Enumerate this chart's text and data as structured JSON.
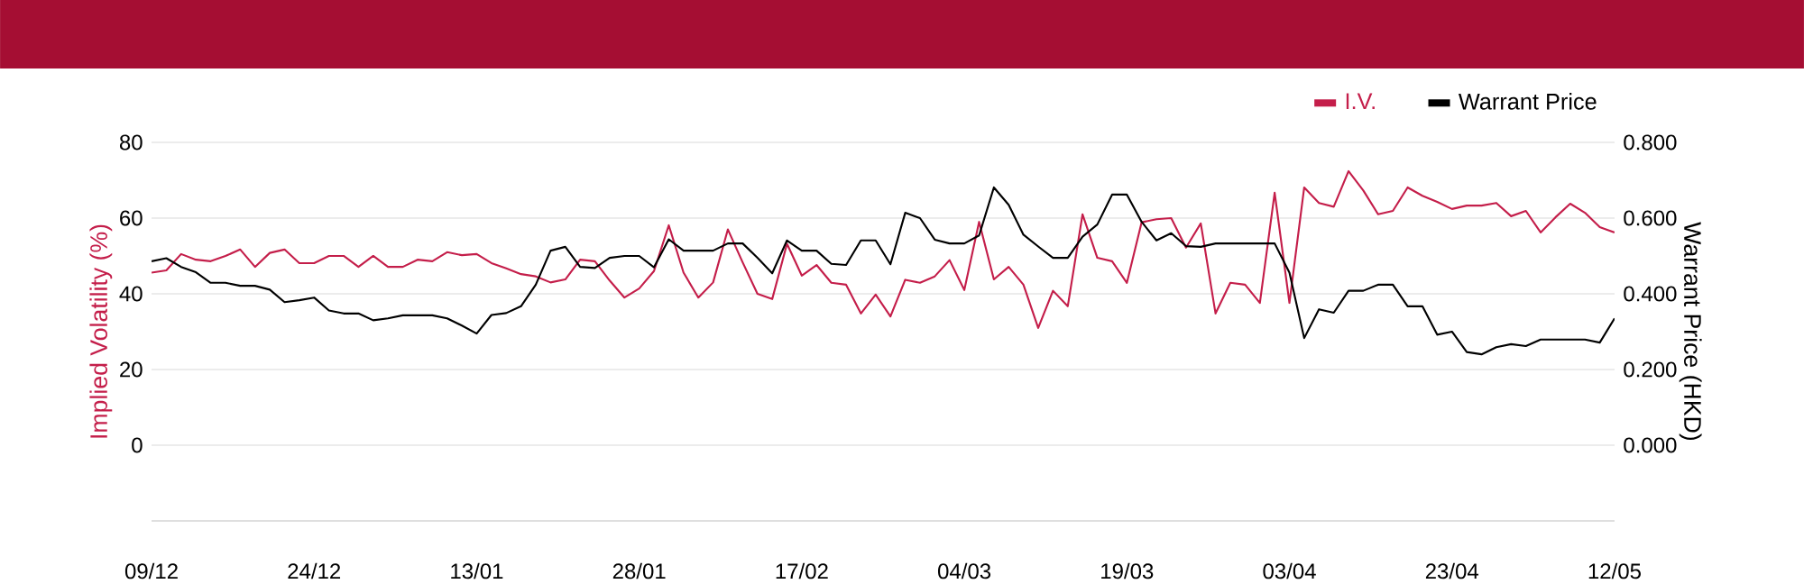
{
  "chart_data": {
    "type": "line",
    "categories": [
      "09/12",
      null,
      null,
      null,
      null,
      null,
      null,
      null,
      null,
      null,
      null,
      "24/12",
      null,
      null,
      null,
      null,
      null,
      null,
      null,
      null,
      null,
      null,
      "13/01",
      null,
      null,
      null,
      null,
      null,
      null,
      null,
      null,
      null,
      null,
      "28/01",
      null,
      null,
      null,
      null,
      null,
      null,
      null,
      null,
      null,
      null,
      "17/02",
      null,
      null,
      null,
      null,
      null,
      null,
      null,
      null,
      null,
      null,
      "04/03",
      null,
      null,
      null,
      null,
      null,
      null,
      null,
      null,
      null,
      null,
      "19/03",
      null,
      null,
      null,
      null,
      null,
      null,
      null,
      null,
      null,
      null,
      "03/04",
      null,
      null,
      null,
      null,
      null,
      null,
      null,
      null,
      null,
      null,
      "23/04",
      null,
      null,
      null,
      null,
      null,
      null,
      null,
      null,
      null,
      null,
      "12/05"
    ],
    "series": [
      {
        "name": "I.V.",
        "color": "#c41e4a",
        "values": [
          45.6,
          46.2,
          50.5,
          49,
          48.6,
          50,
          51.7,
          47.1,
          50.8,
          51.7,
          48.1,
          48.1,
          50,
          50,
          47.1,
          50,
          47.1,
          47.1,
          49,
          48.6,
          51,
          50.2,
          50.5,
          48.1,
          46.7,
          45.2,
          44.6,
          43,
          43.8,
          49,
          48.6,
          43.5,
          39,
          41.4,
          46,
          58.1,
          45.6,
          39,
          43,
          57,
          48.3,
          40,
          38.6,
          53.2,
          44.8,
          47.6,
          42.9,
          42.4,
          34.8,
          39.8,
          34,
          43.7,
          42.9,
          44.6,
          48.9,
          41,
          59,
          43.8,
          47.1,
          42.4,
          31,
          40.8,
          36.7,
          61,
          49.5,
          48.6,
          42.9,
          58.9,
          59.7,
          60,
          52.2,
          58.6,
          34.8,
          42.9,
          42.4,
          37.6,
          66.7,
          37.6,
          68.1,
          64,
          63,
          72.4,
          67.3,
          61,
          61.9,
          68.1,
          65.9,
          64.3,
          62.4,
          63.3,
          63.3,
          64,
          60.5,
          61.9,
          56.2,
          60.2,
          63.8,
          61.4,
          57.6,
          56.2
        ]
      },
      {
        "name": "Warrant Price",
        "color": "#000000",
        "axis": "y2",
        "values": [
          0.486,
          0.494,
          0.471,
          0.457,
          0.429,
          0.429,
          0.421,
          0.421,
          0.411,
          0.378,
          0.383,
          0.39,
          0.356,
          0.348,
          0.348,
          0.33,
          0.335,
          0.343,
          0.343,
          0.343,
          0.335,
          0.316,
          0.295,
          0.344,
          0.349,
          0.367,
          0.424,
          0.514,
          0.524,
          0.471,
          0.468,
          0.495,
          0.5,
          0.5,
          0.47,
          0.544,
          0.514,
          0.514,
          0.514,
          0.533,
          0.533,
          0.495,
          0.454,
          0.541,
          0.514,
          0.514,
          0.479,
          0.476,
          0.541,
          0.541,
          0.478,
          0.614,
          0.6,
          0.543,
          0.533,
          0.533,
          0.554,
          0.681,
          0.635,
          0.556,
          0.525,
          0.495,
          0.495,
          0.551,
          0.583,
          0.662,
          0.662,
          0.59,
          0.541,
          0.56,
          0.526,
          0.524,
          0.533,
          0.533,
          0.533,
          0.533,
          0.533,
          0.456,
          0.283,
          0.359,
          0.35,
          0.408,
          0.408,
          0.424,
          0.424,
          0.367,
          0.367,
          0.292,
          0.3,
          0.246,
          0.24,
          0.259,
          0.267,
          0.262,
          0.279,
          0.279,
          0.279,
          0.279,
          0.271,
          0.335
        ]
      }
    ],
    "ylabel": "Implied Volatility (%)",
    "y2label": "Warrant Price (HKD)",
    "ylim": [
      -20,
      80
    ],
    "yticks": [
      0,
      20,
      40,
      60,
      80
    ],
    "y2lim": [
      -0.2,
      0.8
    ],
    "y2ticks": [
      {
        "value": 0,
        "label": "0.000"
      },
      {
        "value": 0.2,
        "label": "0.200"
      },
      {
        "value": 0.4,
        "label": "0.400"
      },
      {
        "value": 0.6,
        "label": "0.600"
      },
      {
        "value": 0.8,
        "label": "0.800"
      }
    ],
    "grid": "y",
    "legend": "top right",
    "line_style": "solid"
  }
}
